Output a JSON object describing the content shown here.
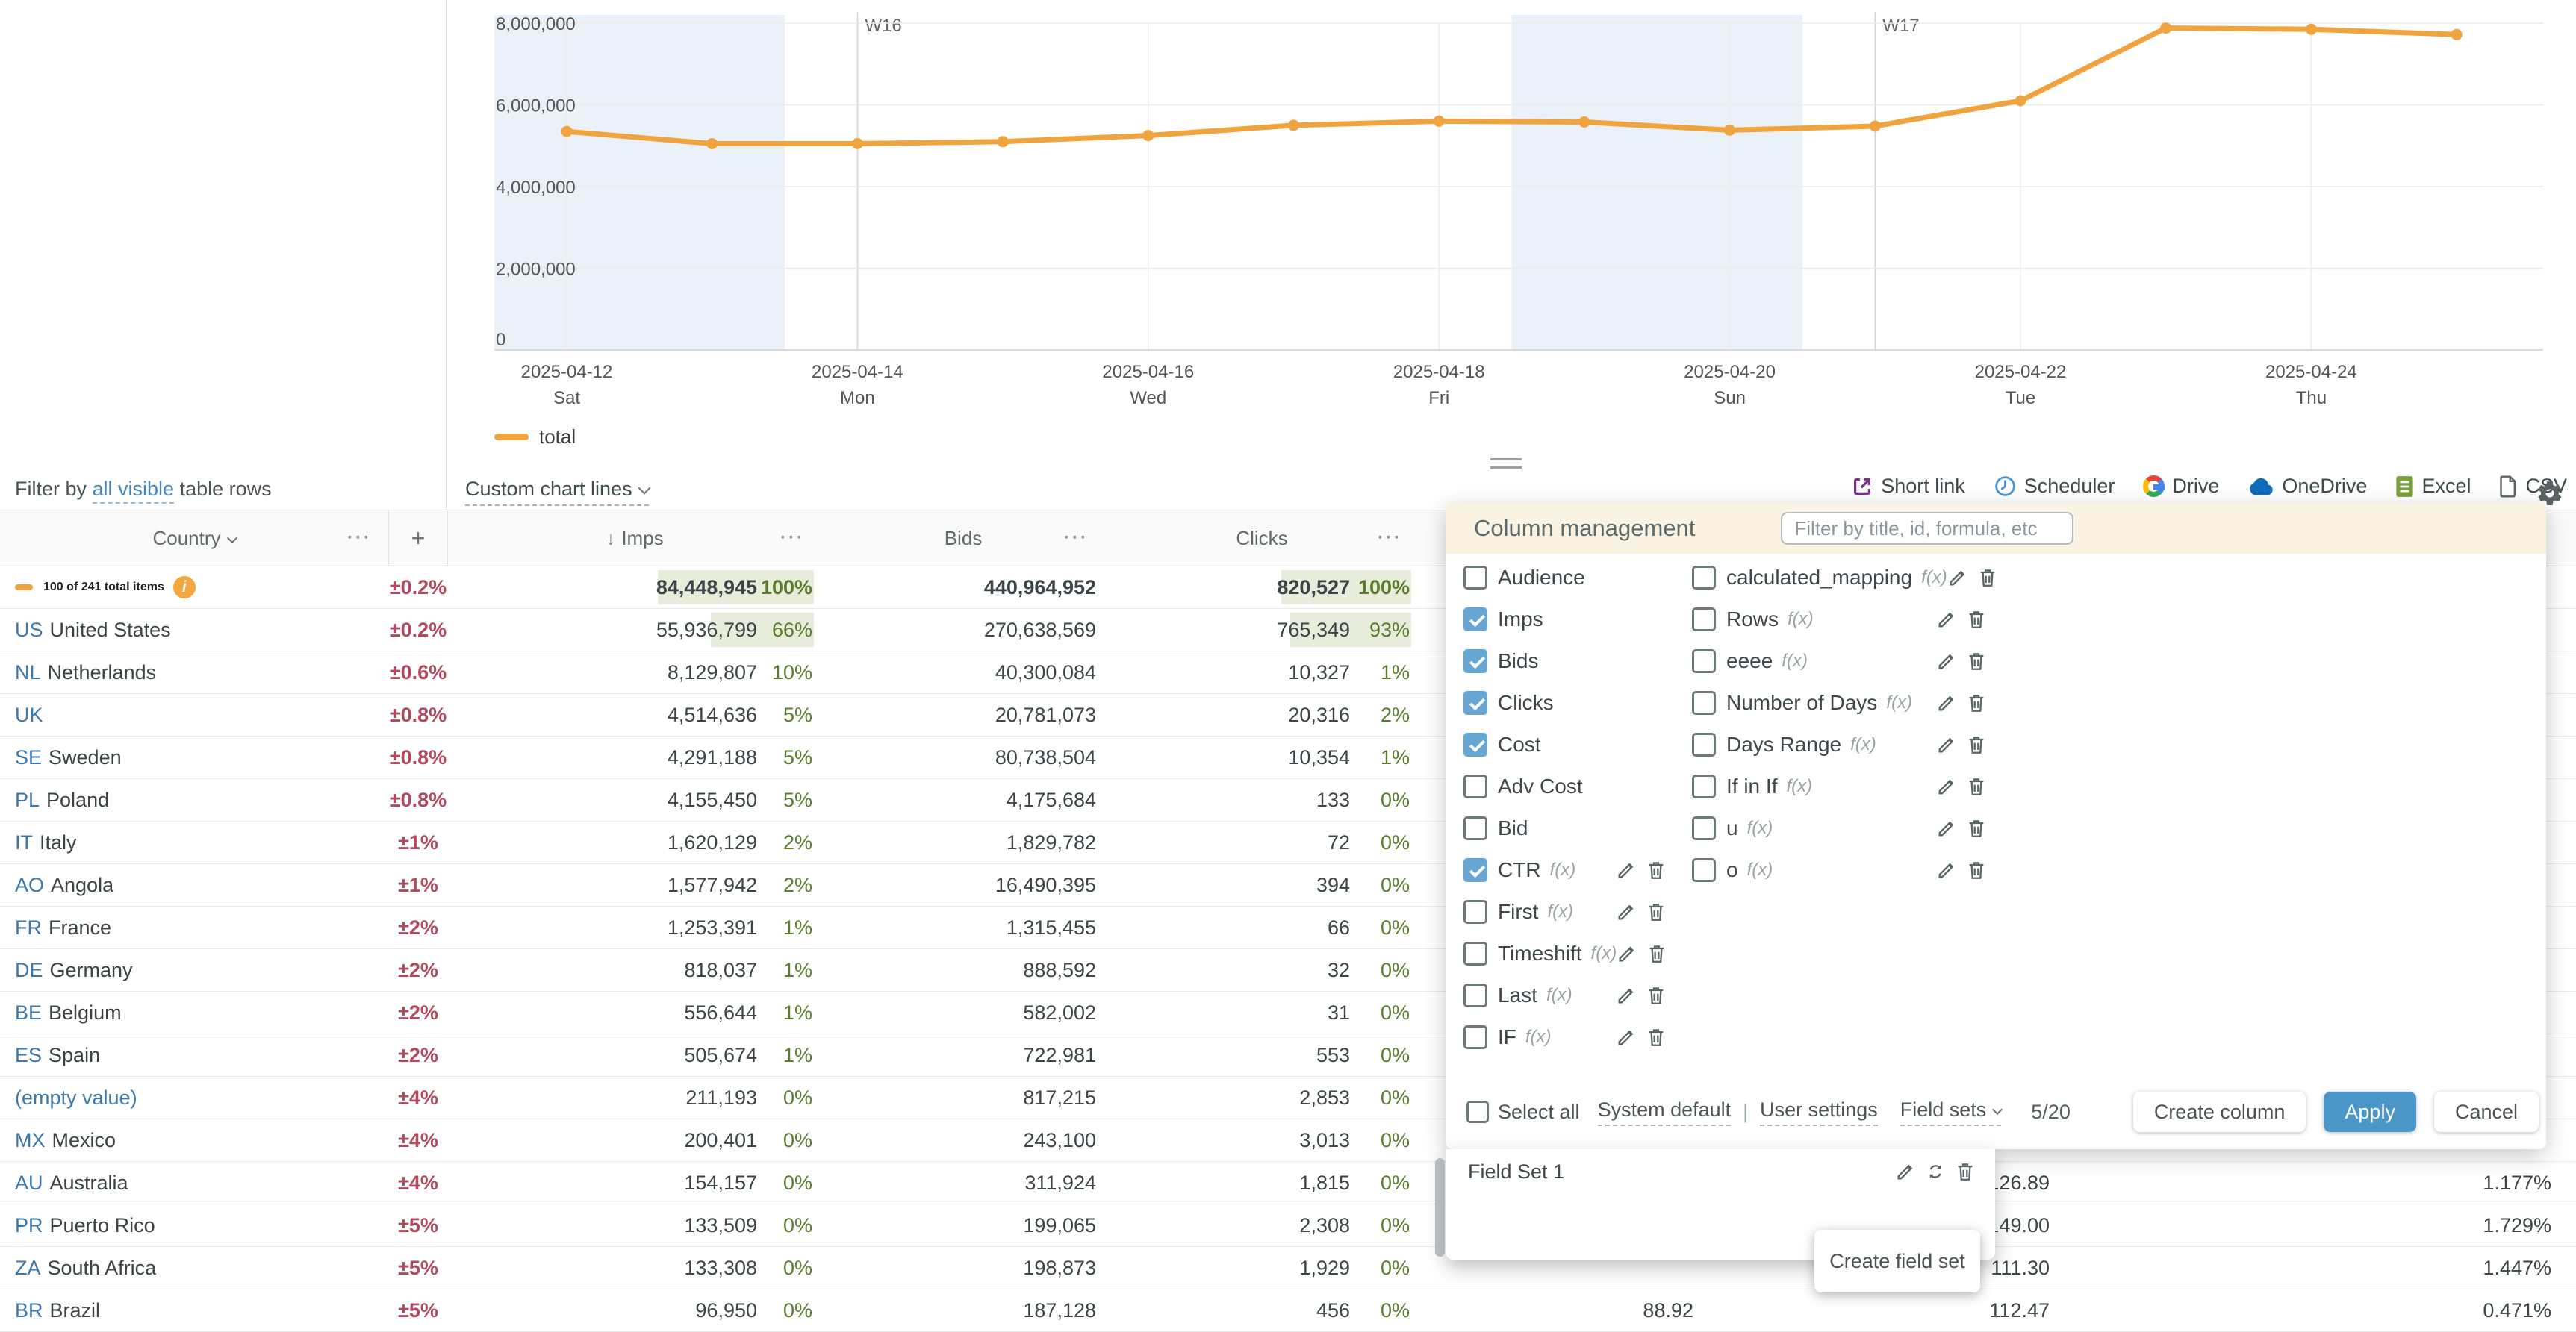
{
  "filter_bar": {
    "prefix": "Filter by ",
    "link": "all visible",
    "suffix": " table rows"
  },
  "chart_controls": {
    "custom_chart_lines": "Custom chart lines"
  },
  "legend": {
    "label": "total"
  },
  "toolbar": {
    "short_link": "Short link",
    "scheduler": "Scheduler",
    "drive": "Drive",
    "onedrive": "OneDrive",
    "excel": "Excel",
    "csv": "CSV"
  },
  "chart_data": {
    "type": "line",
    "x": [
      "2025-04-12",
      "2025-04-13",
      "2025-04-14",
      "2025-04-15",
      "2025-04-16",
      "2025-04-17",
      "2025-04-18",
      "2025-04-19",
      "2025-04-20",
      "2025-04-21",
      "2025-04-22",
      "2025-04-23",
      "2025-04-24",
      "2025-04-25"
    ],
    "series": [
      {
        "name": "total",
        "color": "#F0A43F",
        "values": [
          5350000,
          5050000,
          5050000,
          5100000,
          5250000,
          5500000,
          5600000,
          5580000,
          5380000,
          5480000,
          6100000,
          7880000,
          7850000,
          7720000
        ]
      }
    ],
    "y_ticks": [
      0,
      2000000,
      4000000,
      6000000,
      8000000
    ],
    "ylim": [
      0,
      8000000
    ],
    "x_tick_labels": [
      {
        "i": 0,
        "date": "2025-04-12",
        "day": "Sat"
      },
      {
        "i": 2,
        "date": "2025-04-14",
        "day": "Mon"
      },
      {
        "i": 4,
        "date": "2025-04-16",
        "day": "Wed"
      },
      {
        "i": 6,
        "date": "2025-04-18",
        "day": "Fri"
      },
      {
        "i": 8,
        "date": "2025-04-20",
        "day": "Sun"
      },
      {
        "i": 10,
        "date": "2025-04-22",
        "day": "Tue"
      },
      {
        "i": 12,
        "date": "2025-04-24",
        "day": "Thu"
      }
    ],
    "week_markers": [
      {
        "i": 2,
        "label": "W16"
      },
      {
        "i": 9,
        "label": "W17"
      }
    ],
    "weekend_bands": [
      [
        -0.5,
        1.5
      ],
      [
        6.5,
        8.5
      ]
    ],
    "grid": true,
    "legend_position": "bottom-left"
  },
  "table": {
    "headers": {
      "country": "Country",
      "plus": "+",
      "imps": "Imps",
      "bids": "Bids",
      "clicks": "Clicks"
    },
    "totals": {
      "label": "100 of 241 total items",
      "err": "±0.2%",
      "imps": "84,448,945",
      "imps_pct": 100,
      "bids": "440,964,952",
      "clicks": "820,527",
      "clicks_pct": 100
    },
    "rows": [
      {
        "code": "US",
        "name": "United States",
        "err": "±0.2%",
        "imps": "55,936,799",
        "imps_pct": 66,
        "bids": "270,638,569",
        "clicks": "765,349",
        "clicks_pct": 93
      },
      {
        "code": "NL",
        "name": "Netherlands",
        "err": "±0.6%",
        "imps": "8,129,807",
        "imps_pct": 10,
        "bids": "40,300,084",
        "clicks": "10,327",
        "clicks_pct": 1
      },
      {
        "code": "UK",
        "name": "",
        "err": "±0.8%",
        "imps": "4,514,636",
        "imps_pct": 5,
        "bids": "20,781,073",
        "clicks": "20,316",
        "clicks_pct": 2
      },
      {
        "code": "SE",
        "name": "Sweden",
        "err": "±0.8%",
        "imps": "4,291,188",
        "imps_pct": 5,
        "bids": "80,738,504",
        "clicks": "10,354",
        "clicks_pct": 1
      },
      {
        "code": "PL",
        "name": "Poland",
        "err": "±0.8%",
        "imps": "4,155,450",
        "imps_pct": 5,
        "bids": "4,175,684",
        "clicks": "133",
        "clicks_pct": 0
      },
      {
        "code": "IT",
        "name": "Italy",
        "err": "±1%",
        "imps": "1,620,129",
        "imps_pct": 2,
        "bids": "1,829,782",
        "clicks": "72",
        "clicks_pct": 0
      },
      {
        "code": "AO",
        "name": "Angola",
        "err": "±1%",
        "imps": "1,577,942",
        "imps_pct": 2,
        "bids": "16,490,395",
        "clicks": "394",
        "clicks_pct": 0
      },
      {
        "code": "FR",
        "name": "France",
        "err": "±2%",
        "imps": "1,253,391",
        "imps_pct": 1,
        "bids": "1,315,455",
        "clicks": "66",
        "clicks_pct": 0
      },
      {
        "code": "DE",
        "name": "Germany",
        "err": "±2%",
        "imps": "818,037",
        "imps_pct": 1,
        "bids": "888,592",
        "clicks": "32",
        "clicks_pct": 0
      },
      {
        "code": "BE",
        "name": "Belgium",
        "err": "±2%",
        "imps": "556,644",
        "imps_pct": 1,
        "bids": "582,002",
        "clicks": "31",
        "clicks_pct": 0
      },
      {
        "code": "ES",
        "name": "Spain",
        "err": "±2%",
        "imps": "505,674",
        "imps_pct": 1,
        "bids": "722,981",
        "clicks": "553",
        "clicks_pct": 0
      },
      {
        "code": "",
        "name": "(empty value)",
        "err": "±4%",
        "imps": "211,193",
        "imps_pct": 0,
        "bids": "817,215",
        "clicks": "2,853",
        "clicks_pct": 0
      },
      {
        "code": "MX",
        "name": "Mexico",
        "err": "±4%",
        "imps": "200,401",
        "imps_pct": 0,
        "bids": "243,100",
        "clicks": "3,013",
        "clicks_pct": 0
      },
      {
        "code": "AU",
        "name": "Australia",
        "err": "±4%",
        "imps": "154,157",
        "imps_pct": 0,
        "bids": "311,924",
        "clicks": "1,815",
        "clicks_pct": 0,
        "c7": "126.89",
        "c8": "1.177%"
      },
      {
        "code": "PR",
        "name": "Puerto Rico",
        "err": "±5%",
        "imps": "133,509",
        "imps_pct": 0,
        "bids": "199,065",
        "clicks": "2,308",
        "clicks_pct": 0,
        "c7": "149.00",
        "c8": "1.729%"
      },
      {
        "code": "ZA",
        "name": "South Africa",
        "err": "±5%",
        "imps": "133,308",
        "imps_pct": 0,
        "bids": "198,873",
        "clicks": "1,929",
        "clicks_pct": 0,
        "c7": "111.30",
        "c8": "1.447%"
      },
      {
        "code": "BR",
        "name": "Brazil",
        "err": "±5%",
        "imps": "96,950",
        "imps_pct": 0,
        "bids": "187,128",
        "clicks": "456",
        "clicks_pct": 0,
        "c6": "88.92",
        "c7": "112.47",
        "c8": "0.471%"
      }
    ]
  },
  "panel": {
    "title": "Column management",
    "filter_placeholder": "Filter by title, id, formula, etc",
    "left_items": [
      {
        "label": "Audience",
        "checked": false,
        "fx": false,
        "icons": false
      },
      {
        "label": "Imps",
        "checked": true,
        "fx": false,
        "icons": false
      },
      {
        "label": "Bids",
        "checked": true,
        "fx": false,
        "icons": false
      },
      {
        "label": "Clicks",
        "checked": true,
        "fx": false,
        "icons": false
      },
      {
        "label": "Cost",
        "checked": true,
        "fx": false,
        "icons": false
      },
      {
        "label": "Adv Cost",
        "checked": false,
        "fx": false,
        "icons": false
      },
      {
        "label": "Bid",
        "checked": false,
        "fx": false,
        "icons": false
      },
      {
        "label": "CTR",
        "checked": true,
        "fx": true,
        "icons": true
      },
      {
        "label": "First",
        "checked": false,
        "fx": true,
        "icons": true
      },
      {
        "label": "Timeshift",
        "checked": false,
        "fx": true,
        "icons": true
      },
      {
        "label": "Last",
        "checked": false,
        "fx": true,
        "icons": true
      },
      {
        "label": "IF",
        "checked": false,
        "fx": true,
        "icons": true
      }
    ],
    "right_items": [
      {
        "label": "calculated_mapping",
        "checked": false,
        "fx": true,
        "icons": true
      },
      {
        "label": "Rows",
        "checked": false,
        "fx": true,
        "icons": true
      },
      {
        "label": "eeee",
        "checked": false,
        "fx": true,
        "icons": true
      },
      {
        "label": "Number of Days",
        "checked": false,
        "fx": true,
        "icons": true
      },
      {
        "label": "Days Range",
        "checked": false,
        "fx": true,
        "icons": true
      },
      {
        "label": "If in If",
        "checked": false,
        "fx": true,
        "icons": true
      },
      {
        "label": "u",
        "checked": false,
        "fx": true,
        "icons": true
      },
      {
        "label": "o",
        "checked": false,
        "fx": true,
        "icons": true
      }
    ],
    "footer": {
      "select_all": "Select all",
      "system_default": "System default",
      "user_settings": "User settings",
      "field_sets": "Field sets",
      "count": "5/20",
      "create_column": "Create column",
      "apply": "Apply",
      "cancel": "Cancel"
    },
    "field_set_dropdown": {
      "name": "Field Set 1",
      "create_button": "Create field set"
    }
  },
  "colors": {
    "accent_orange": "#F0A43F",
    "weekend_band": "#EAF1F8",
    "green_pct": "#5A7D2C",
    "green_bar": "#E7EDDA",
    "red_err": "#B14A5E",
    "link_blue": "#3D78AD",
    "checkbox_blue": "#67A6D2",
    "apply_blue": "#4A96C8",
    "panel_header": "#FAF3E4"
  }
}
